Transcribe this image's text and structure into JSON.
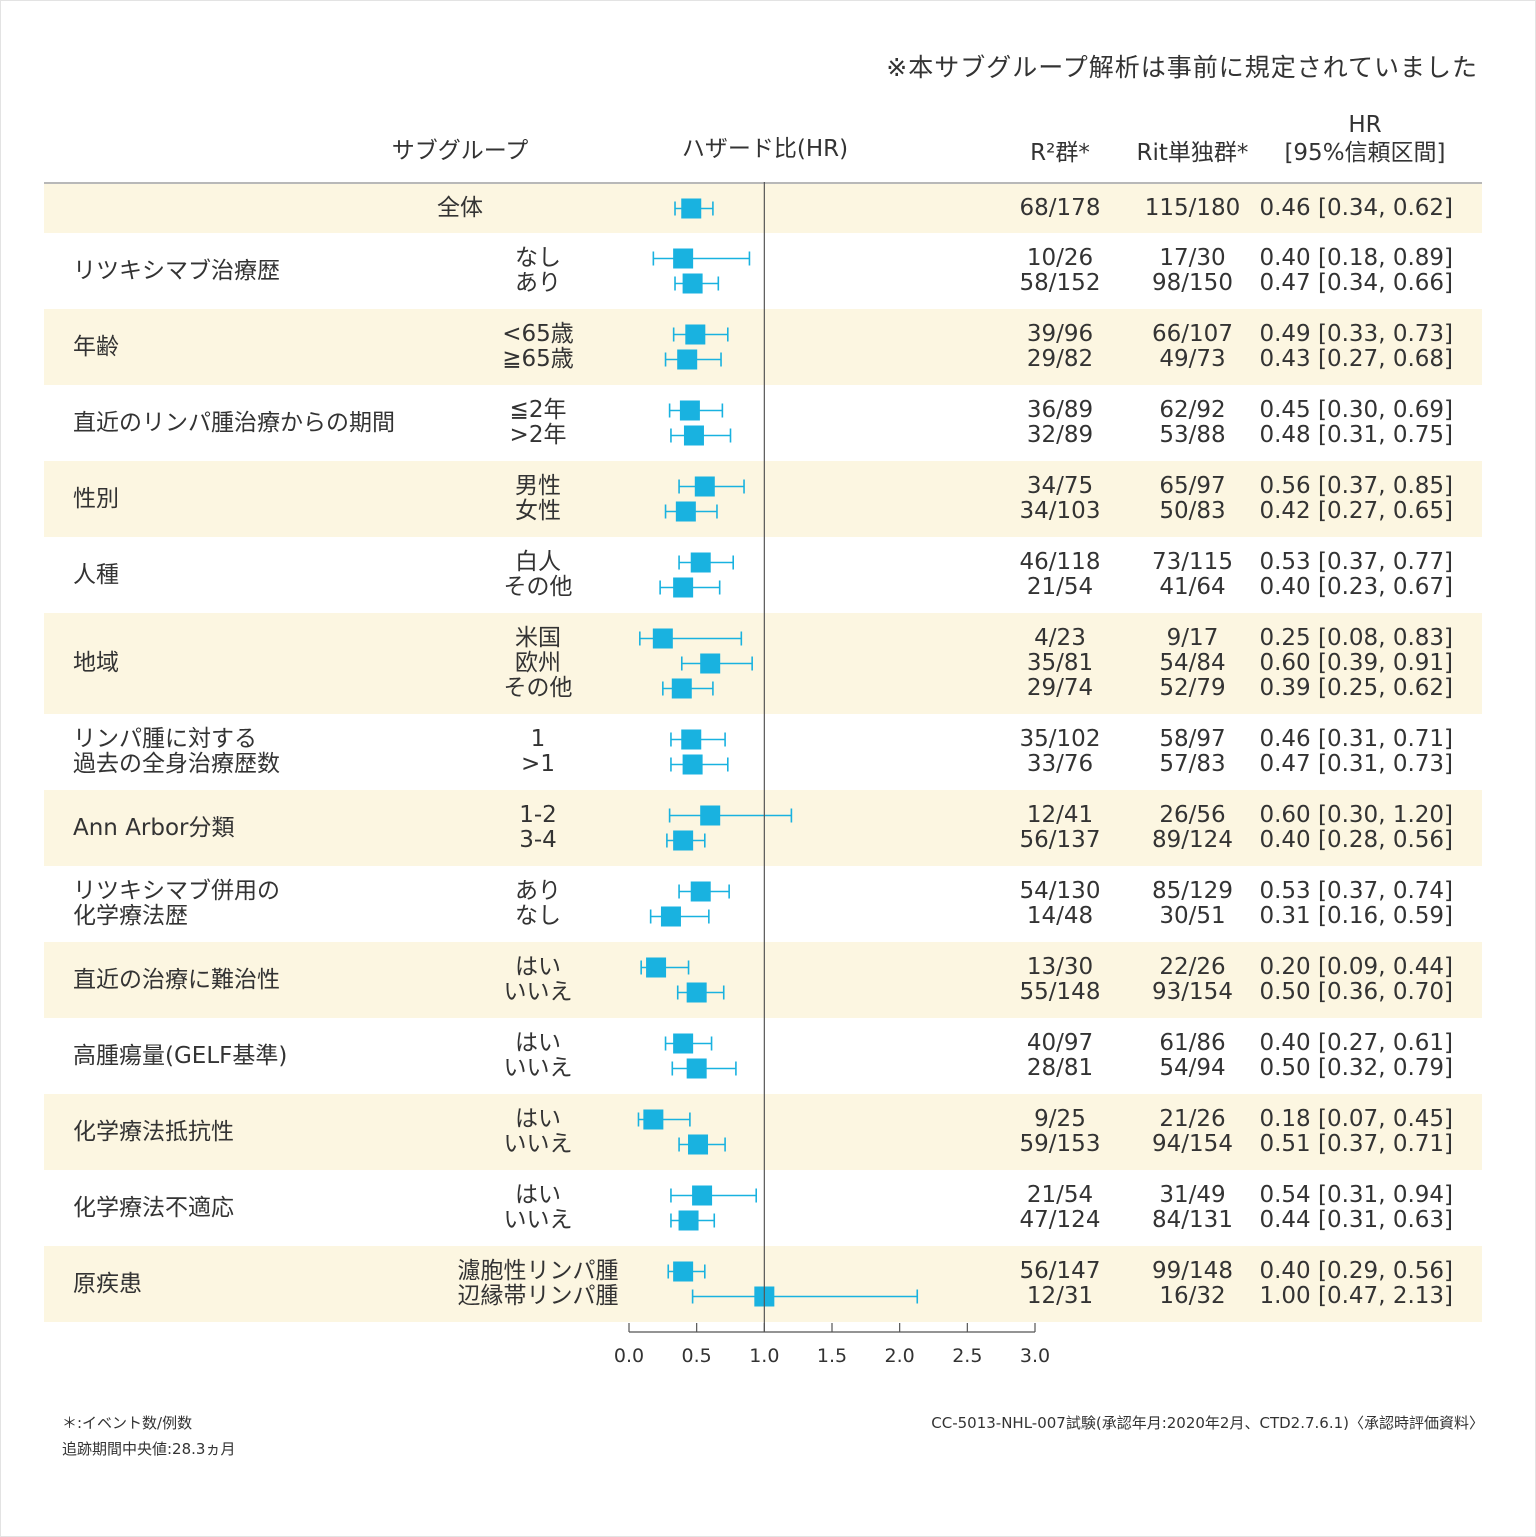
{
  "note": "※本サブグループ解析は事前に規定されていました",
  "headers": {
    "subgroup": "サブグループ",
    "hazard": "ハザード比(HR)",
    "r2": "R²群*",
    "rit": "Rit単独群*",
    "hr_line1": "HR",
    "hr_line2": "[95%信頼区間]"
  },
  "footer": {
    "events": "＊:イベント数/例数",
    "followup": "追跡期間中央値:28.3ヵ月",
    "source": "CC-5013-NHL-007試験(承認年月:2020年2月、CTD2.7.6.1)〈承認時評価資料〉"
  },
  "colors": {
    "marker": "#19b2e0",
    "band": "#fcf6e1",
    "reference_line": "#555555"
  },
  "chart_data": {
    "type": "forest",
    "x_axis": {
      "range": [
        0,
        3
      ],
      "ticks": [
        "0.0",
        "0.5",
        "1.0",
        "1.5",
        "2.0",
        "2.5",
        "3.0"
      ],
      "reference": 1.0
    },
    "groups": [
      {
        "label": "全体",
        "shaded": true,
        "rows": [
          {
            "level": "",
            "r2": "68/178",
            "rit": "115/180",
            "hr_text": "0.46 [0.34, 0.62]",
            "hr": 0.46,
            "lo": 0.34,
            "hi": 0.62
          }
        ]
      },
      {
        "label": "リツキシマブ治療歴",
        "shaded": false,
        "rows": [
          {
            "level": "なし",
            "r2": "10/26",
            "rit": "17/30",
            "hr_text": "0.40 [0.18, 0.89]",
            "hr": 0.4,
            "lo": 0.18,
            "hi": 0.89
          },
          {
            "level": "あり",
            "r2": "58/152",
            "rit": "98/150",
            "hr_text": "0.47 [0.34, 0.66]",
            "hr": 0.47,
            "lo": 0.34,
            "hi": 0.66
          }
        ]
      },
      {
        "label": "年齢",
        "shaded": true,
        "rows": [
          {
            "level": "<65歳",
            "r2": "39/96",
            "rit": "66/107",
            "hr_text": "0.49 [0.33, 0.73]",
            "hr": 0.49,
            "lo": 0.33,
            "hi": 0.73
          },
          {
            "level": "≧65歳",
            "r2": "29/82",
            "rit": "49/73",
            "hr_text": "0.43 [0.27, 0.68]",
            "hr": 0.43,
            "lo": 0.27,
            "hi": 0.68
          }
        ]
      },
      {
        "label": "直近のリンパ腫治療からの期間",
        "shaded": false,
        "rows": [
          {
            "level": "≦2年",
            "r2": "36/89",
            "rit": "62/92",
            "hr_text": "0.45 [0.30, 0.69]",
            "hr": 0.45,
            "lo": 0.3,
            "hi": 0.69
          },
          {
            "level": ">2年",
            "r2": "32/89",
            "rit": "53/88",
            "hr_text": "0.48 [0.31, 0.75]",
            "hr": 0.48,
            "lo": 0.31,
            "hi": 0.75
          }
        ]
      },
      {
        "label": "性別",
        "shaded": true,
        "rows": [
          {
            "level": "男性",
            "r2": "34/75",
            "rit": "65/97",
            "hr_text": "0.56 [0.37, 0.85]",
            "hr": 0.56,
            "lo": 0.37,
            "hi": 0.85
          },
          {
            "level": "女性",
            "r2": "34/103",
            "rit": "50/83",
            "hr_text": "0.42 [0.27, 0.65]",
            "hr": 0.42,
            "lo": 0.27,
            "hi": 0.65
          }
        ]
      },
      {
        "label": "人種",
        "shaded": false,
        "rows": [
          {
            "level": "白人",
            "r2": "46/118",
            "rit": "73/115",
            "hr_text": "0.53 [0.37, 0.77]",
            "hr": 0.53,
            "lo": 0.37,
            "hi": 0.77
          },
          {
            "level": "その他",
            "r2": "21/54",
            "rit": "41/64",
            "hr_text": "0.40 [0.23, 0.67]",
            "hr": 0.4,
            "lo": 0.23,
            "hi": 0.67
          }
        ]
      },
      {
        "label": "地域",
        "shaded": true,
        "rows": [
          {
            "level": "米国",
            "r2": "4/23",
            "rit": "9/17",
            "hr_text": "0.25 [0.08, 0.83]",
            "hr": 0.25,
            "lo": 0.08,
            "hi": 0.83
          },
          {
            "level": "欧州",
            "r2": "35/81",
            "rit": "54/84",
            "hr_text": "0.60 [0.39, 0.91]",
            "hr": 0.6,
            "lo": 0.39,
            "hi": 0.91
          },
          {
            "level": "その他",
            "r2": "29/74",
            "rit": "52/79",
            "hr_text": "0.39 [0.25, 0.62]",
            "hr": 0.39,
            "lo": 0.25,
            "hi": 0.62
          }
        ]
      },
      {
        "label": "リンパ腫に対する\n過去の全身治療歴数",
        "shaded": false,
        "rows": [
          {
            "level": "1",
            "r2": "35/102",
            "rit": "58/97",
            "hr_text": "0.46 [0.31, 0.71]",
            "hr": 0.46,
            "lo": 0.31,
            "hi": 0.71
          },
          {
            "level": ">1",
            "r2": "33/76",
            "rit": "57/83",
            "hr_text": "0.47 [0.31, 0.73]",
            "hr": 0.47,
            "lo": 0.31,
            "hi": 0.73
          }
        ]
      },
      {
        "label": "Ann Arbor分類",
        "shaded": true,
        "rows": [
          {
            "level": "1-2",
            "r2": "12/41",
            "rit": "26/56",
            "hr_text": "0.60 [0.30, 1.20]",
            "hr": 0.6,
            "lo": 0.3,
            "hi": 1.2
          },
          {
            "level": "3-4",
            "r2": "56/137",
            "rit": "89/124",
            "hr_text": "0.40 [0.28, 0.56]",
            "hr": 0.4,
            "lo": 0.28,
            "hi": 0.56
          }
        ]
      },
      {
        "label": "リツキシマブ併用の\n化学療法歴",
        "shaded": false,
        "rows": [
          {
            "level": "あり",
            "r2": "54/130",
            "rit": "85/129",
            "hr_text": "0.53 [0.37, 0.74]",
            "hr": 0.53,
            "lo": 0.37,
            "hi": 0.74
          },
          {
            "level": "なし",
            "r2": "14/48",
            "rit": "30/51",
            "hr_text": "0.31 [0.16, 0.59]",
            "hr": 0.31,
            "lo": 0.16,
            "hi": 0.59
          }
        ]
      },
      {
        "label": "直近の治療に難治性",
        "shaded": true,
        "rows": [
          {
            "level": "はい",
            "r2": "13/30",
            "rit": "22/26",
            "hr_text": "0.20 [0.09, 0.44]",
            "hr": 0.2,
            "lo": 0.09,
            "hi": 0.44
          },
          {
            "level": "いいえ",
            "r2": "55/148",
            "rit": "93/154",
            "hr_text": "0.50 [0.36, 0.70]",
            "hr": 0.5,
            "lo": 0.36,
            "hi": 0.7
          }
        ]
      },
      {
        "label": "高腫瘍量(GELF基準)",
        "shaded": false,
        "rows": [
          {
            "level": "はい",
            "r2": "40/97",
            "rit": "61/86",
            "hr_text": "0.40 [0.27, 0.61]",
            "hr": 0.4,
            "lo": 0.27,
            "hi": 0.61
          },
          {
            "level": "いいえ",
            "r2": "28/81",
            "rit": "54/94",
            "hr_text": "0.50 [0.32, 0.79]",
            "hr": 0.5,
            "lo": 0.32,
            "hi": 0.79
          }
        ]
      },
      {
        "label": "化学療法抵抗性",
        "shaded": true,
        "rows": [
          {
            "level": "はい",
            "r2": "9/25",
            "rit": "21/26",
            "hr_text": "0.18 [0.07, 0.45]",
            "hr": 0.18,
            "lo": 0.07,
            "hi": 0.45
          },
          {
            "level": "いいえ",
            "r2": "59/153",
            "rit": "94/154",
            "hr_text": "0.51 [0.37, 0.71]",
            "hr": 0.51,
            "lo": 0.37,
            "hi": 0.71
          }
        ]
      },
      {
        "label": "化学療法不適応",
        "shaded": false,
        "rows": [
          {
            "level": "はい",
            "r2": "21/54",
            "rit": "31/49",
            "hr_text": "0.54 [0.31, 0.94]",
            "hr": 0.54,
            "lo": 0.31,
            "hi": 0.94
          },
          {
            "level": "いいえ",
            "r2": "47/124",
            "rit": "84/131",
            "hr_text": "0.44 [0.31, 0.63]",
            "hr": 0.44,
            "lo": 0.31,
            "hi": 0.63
          }
        ]
      },
      {
        "label": "原疾患",
        "shaded": true,
        "rows": [
          {
            "level": "濾胞性リンパ腫",
            "r2": "56/147",
            "rit": "99/148",
            "hr_text": "0.40 [0.29, 0.56]",
            "hr": 0.4,
            "lo": 0.29,
            "hi": 0.56
          },
          {
            "level": "辺縁帯リンパ腫",
            "r2": "12/31",
            "rit": "16/32",
            "hr_text": "1.00 [0.47, 2.13]",
            "hr": 1.0,
            "lo": 0.47,
            "hi": 2.13
          }
        ]
      }
    ]
  }
}
